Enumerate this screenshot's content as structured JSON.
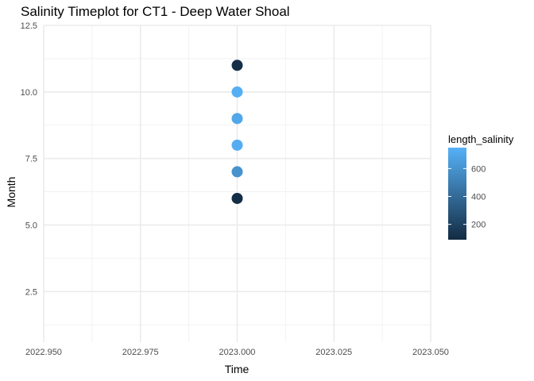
{
  "chart_data": {
    "type": "scatter",
    "title": "Salinity Timeplot for CT1 - Deep Water Shoal",
    "xlabel": "Time",
    "ylabel": "Month",
    "xlim": [
      2022.95,
      2023.05
    ],
    "ylim": [
      0.6,
      12.5
    ],
    "x_ticks": [
      2022.95,
      2022.975,
      2023.0,
      2023.025,
      2023.05
    ],
    "x_tick_labels": [
      "2022.950",
      "2022.975",
      "2023.000",
      "2023.025",
      "2023.050"
    ],
    "y_ticks": [
      2.5,
      5.0,
      7.5,
      10.0,
      12.5
    ],
    "y_tick_labels": [
      "2.5",
      "5.0",
      "7.5",
      "10.0",
      "12.5"
    ],
    "grid": true,
    "points": [
      {
        "x": 2023.0,
        "y": 6,
        "color_value": 100
      },
      {
        "x": 2023.0,
        "y": 7,
        "color_value": 600
      },
      {
        "x": 2023.0,
        "y": 8,
        "color_value": 730
      },
      {
        "x": 2023.0,
        "y": 9,
        "color_value": 700
      },
      {
        "x": 2023.0,
        "y": 10,
        "color_value": 740
      },
      {
        "x": 2023.0,
        "y": 11,
        "color_value": 110
      }
    ],
    "legend": {
      "title": "length_salinity",
      "placement": "right",
      "range": [
        90,
        750
      ],
      "ticks": [
        200,
        400,
        600
      ],
      "tick_labels": [
        "200",
        "400",
        "600"
      ],
      "low_color": "#132B43",
      "high_color": "#56B1F7"
    }
  }
}
